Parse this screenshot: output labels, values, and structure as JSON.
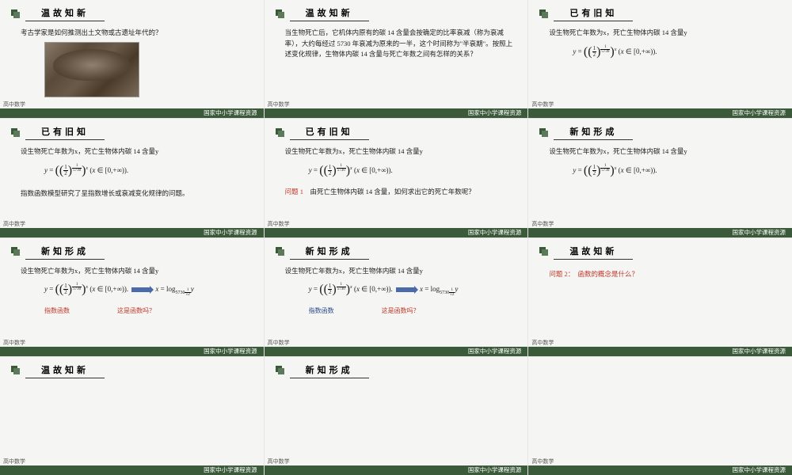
{
  "footer_subject": "高中数学",
  "footer_source": "国家中小学课程资源",
  "slides": [
    {
      "title": "温故知新",
      "body": "考古学家是如何推测出土文物或古遗址年代的？",
      "has_image": true
    },
    {
      "title": "温故知新",
      "body": "当生物死亡后，它机体内原有的碳 14 含量会按确定的比率衰减（称为衰减率），大约每经过 5730 年衰减为原来的一半，这个时间称为\"半衰期\"。按照上述变化规律，生物体内碳 14 含量与死亡年数之间有怎样的关系？"
    },
    {
      "title": "已有旧知",
      "body": "设生物死亡年数为x，死亡生物体内碳 14 含量y",
      "has_formula": true
    },
    {
      "title": "已有旧知",
      "body": "设生物死亡年数为x，死亡生物体内碳 14 含量y",
      "has_formula": true,
      "note": "指数函数模型研究了呈指数增长或衰减变化规律的问题。"
    },
    {
      "title": "已有旧知",
      "body": "设生物死亡年数为x，死亡生物体内碳 14 含量y",
      "has_formula": true,
      "q1": "问题 1　由死亡生物体内碳 14 含量，如何求出它的死亡年数呢？"
    },
    {
      "title": "新知形成",
      "body": "设生物死亡年数为x，死亡生物体内碳 14 含量y",
      "has_formula": true
    },
    {
      "title": "新知形成",
      "body": "设生物死亡年数为x，死亡生物体内碳 14 含量y",
      "has_formula": true,
      "has_arrow": true,
      "labels": [
        "指数函数",
        "这是函数吗？"
      ],
      "label_colors": [
        "#c0392b",
        "#c0392b"
      ]
    },
    {
      "title": "新知形成",
      "body": "设生物死亡年数为x，死亡生物体内碳 14 含量y",
      "has_formula": true,
      "has_arrow": true,
      "labels": [
        "指数函数",
        "这是函数吗？"
      ],
      "label_colors": [
        "#2a4a8a",
        "#c0392b"
      ]
    },
    {
      "title": "温故知新",
      "q2": "问题 2：　函数的概念是什么？"
    },
    {
      "title": "温故知新"
    },
    {
      "title": "新知形成"
    },
    {
      "title": ""
    }
  ]
}
